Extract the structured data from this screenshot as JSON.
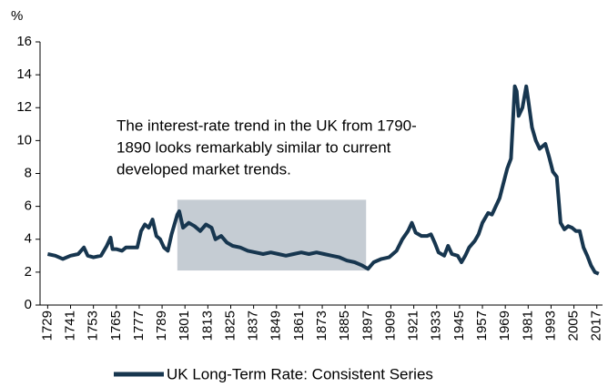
{
  "chart_data": {
    "type": "line",
    "y_unit": "%",
    "annotation": [
      "The interest-rate trend in the UK from 1790-",
      "1890 looks remarkably similar to current",
      "developed market trends."
    ],
    "highlight": {
      "x": [
        1797,
        1896
      ],
      "y": [
        2.1,
        6.4
      ],
      "color": "#c5ccd3"
    },
    "xlim": [
      1725,
      2020
    ],
    "xticks": [
      1729,
      1741,
      1753,
      1765,
      1777,
      1789,
      1801,
      1813,
      1825,
      1837,
      1849,
      1861,
      1873,
      1885,
      1897,
      1909,
      1921,
      1933,
      1945,
      1957,
      1969,
      1981,
      1993,
      2005,
      2017
    ],
    "ylim": [
      0,
      16
    ],
    "yticks": [
      0,
      2,
      4,
      6,
      8,
      10,
      12,
      14,
      16
    ],
    "series": [
      {
        "name": "UK Long-Term Rate: Consistent Series",
        "color": "#17364f",
        "x": [
          1729,
          1733,
          1737,
          1741,
          1745,
          1748,
          1750,
          1753,
          1757,
          1760,
          1762,
          1763,
          1765,
          1768,
          1770,
          1773,
          1776,
          1778,
          1780,
          1782,
          1784,
          1786,
          1788,
          1790,
          1792,
          1794,
          1797,
          1798,
          1800,
          1803,
          1806,
          1809,
          1812,
          1815,
          1817,
          1820,
          1823,
          1826,
          1830,
          1834,
          1838,
          1842,
          1846,
          1850,
          1854,
          1858,
          1862,
          1866,
          1870,
          1874,
          1878,
          1882,
          1886,
          1890,
          1894,
          1897,
          1900,
          1904,
          1908,
          1912,
          1915,
          1918,
          1920,
          1922,
          1925,
          1928,
          1930,
          1932,
          1934,
          1937,
          1939,
          1941,
          1944,
          1946,
          1948,
          1950,
          1953,
          1955,
          1957,
          1960,
          1962,
          1964,
          1966,
          1968,
          1970,
          1972,
          1974,
          1975,
          1976,
          1978,
          1980,
          1981,
          1983,
          1985,
          1987,
          1990,
          1992,
          1994,
          1996,
          1998,
          2000,
          2002,
          2004,
          2006,
          2008,
          2010,
          2012,
          2014,
          2016,
          2018
        ],
        "values": [
          3.1,
          3.0,
          2.8,
          3.0,
          3.1,
          3.5,
          3.0,
          2.9,
          3.0,
          3.6,
          4.1,
          3.4,
          3.4,
          3.3,
          3.5,
          3.5,
          3.5,
          4.5,
          4.9,
          4.7,
          5.2,
          4.2,
          4.0,
          3.5,
          3.3,
          4.3,
          5.5,
          5.7,
          4.7,
          5.0,
          4.8,
          4.5,
          4.9,
          4.7,
          4.0,
          4.2,
          3.8,
          3.6,
          3.5,
          3.3,
          3.2,
          3.1,
          3.2,
          3.1,
          3.0,
          3.1,
          3.2,
          3.1,
          3.2,
          3.1,
          3.0,
          2.9,
          2.7,
          2.6,
          2.4,
          2.2,
          2.6,
          2.8,
          2.9,
          3.3,
          4.0,
          4.5,
          5.0,
          4.4,
          4.2,
          4.2,
          4.3,
          3.8,
          3.2,
          3.0,
          3.6,
          3.1,
          3.0,
          2.6,
          3.0,
          3.5,
          3.9,
          4.3,
          5.0,
          5.6,
          5.5,
          6.0,
          6.5,
          7.4,
          8.3,
          8.9,
          13.3,
          13.0,
          11.5,
          12.0,
          13.3,
          12.5,
          10.8,
          10.0,
          9.5,
          9.8,
          9.0,
          8.1,
          7.8,
          5.0,
          4.6,
          4.8,
          4.7,
          4.5,
          4.5,
          3.5,
          3.0,
          2.4,
          2.0,
          1.9
        ]
      }
    ]
  }
}
